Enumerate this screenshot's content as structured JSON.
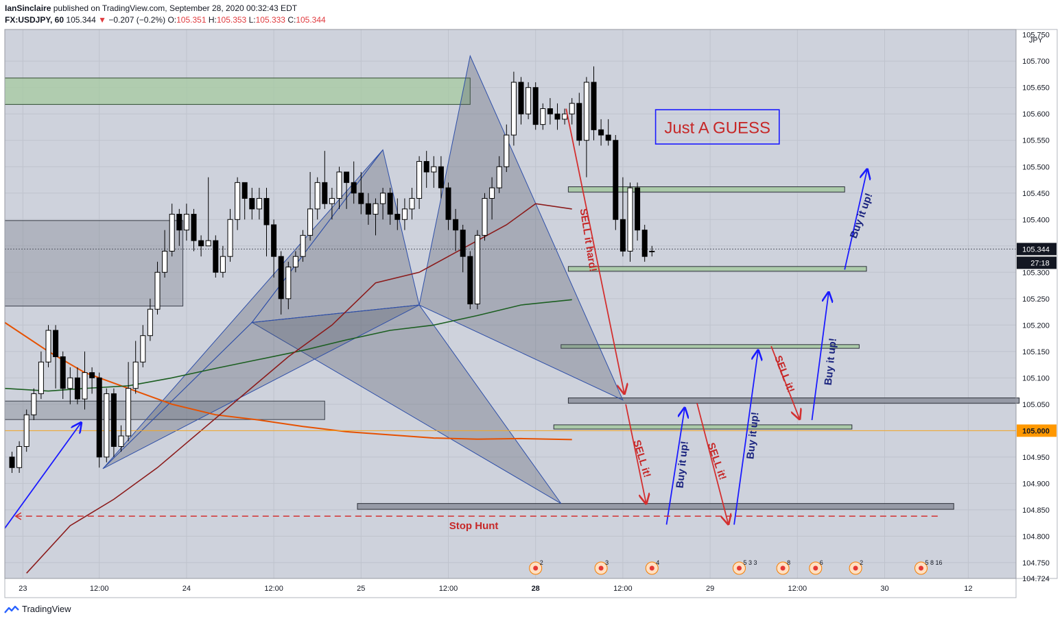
{
  "header": {
    "author": "IanSinclaire",
    "published_text": "published on TradingView.com, September 28, 2020 00:32:43 EDT",
    "symbol": "FX:USDJPY, 60",
    "last": "105.344",
    "change": "−0.207 (−0.2%)",
    "ohlc": [
      {
        "label": "O:",
        "value": "105.351"
      },
      {
        "label": "H:",
        "value": "105.353"
      },
      {
        "label": "L:",
        "value": "105.333"
      },
      {
        "label": "C:",
        "value": "105.344"
      }
    ]
  },
  "footer": {
    "brand": "TradingView"
  },
  "colors": {
    "bg": "#ced2dc",
    "up": "#ffffff",
    "down": "#000000",
    "accent_red": "#d32f2f",
    "accent_blue": "#1a1aff",
    "text_blue": "#1a237e"
  },
  "chart_data": {
    "type": "candlestick",
    "symbol": "FX:USDJPY",
    "interval": "60",
    "ylim": [
      104.72,
      105.76
    ],
    "yaxis_unit": "JPY",
    "yticks": [
      "105.700",
      "105.650",
      "105.600",
      "105.550",
      "105.500",
      "105.450",
      "105.400",
      "105.350",
      "105.300",
      "105.250",
      "105.200",
      "105.150",
      "105.100",
      "105.050",
      "105.000",
      "104.950",
      "104.900",
      "104.850",
      "104.800",
      "104.750"
    ],
    "ytick_top_partial": "105.750",
    "ytick_bottom_partial": "104.724",
    "price_label": "105.344",
    "countdown_label": "27:18",
    "level_label": "105.000",
    "xticks": [
      {
        "label": "23",
        "x": 1.5
      },
      {
        "label": "12:00",
        "x": 12
      },
      {
        "label": "24",
        "x": 24
      },
      {
        "label": "12:00",
        "x": 36
      },
      {
        "label": "25",
        "x": 48
      },
      {
        "label": "12:00",
        "x": 60
      },
      {
        "label": "28",
        "x": 72
      },
      {
        "label": "12:00",
        "x": 84
      },
      {
        "label": "29",
        "x": 96
      },
      {
        "label": "12:00",
        "x": 108
      },
      {
        "label": "30",
        "x": 120
      },
      {
        "label": "12",
        "x": 131.5
      }
    ],
    "candles": [
      [
        104.95,
        104.93,
        104.96,
        104.92
      ],
      [
        104.93,
        104.97,
        104.98,
        104.92
      ],
      [
        104.97,
        105.03,
        105.04,
        104.96
      ],
      [
        105.03,
        105.07,
        105.08,
        105.02
      ],
      [
        105.07,
        105.13,
        105.15,
        105.06
      ],
      [
        105.13,
        105.19,
        105.2,
        105.12
      ],
      [
        105.19,
        105.14,
        105.2,
        105.08
      ],
      [
        105.14,
        105.08,
        105.15,
        105.06
      ],
      [
        105.08,
        105.1,
        105.12,
        105.05
      ],
      [
        105.1,
        105.06,
        105.12,
        105.05
      ],
      [
        105.06,
        105.11,
        105.15,
        105.04
      ],
      [
        105.11,
        105.1,
        105.12,
        105.07
      ],
      [
        105.1,
        104.95,
        105.11,
        104.93
      ],
      [
        104.95,
        105.07,
        105.08,
        104.94
      ],
      [
        105.07,
        104.97,
        105.08,
        104.95
      ],
      [
        104.97,
        104.99,
        105.01,
        104.96
      ],
      [
        104.99,
        105.08,
        105.13,
        104.98
      ],
      [
        105.08,
        105.13,
        105.17,
        105.07
      ],
      [
        105.13,
        105.18,
        105.2,
        105.12
      ],
      [
        105.18,
        105.23,
        105.25,
        105.17
      ],
      [
        105.23,
        105.3,
        105.32,
        105.22
      ],
      [
        105.3,
        105.34,
        105.38,
        105.29
      ],
      [
        105.34,
        105.41,
        105.43,
        105.33
      ],
      [
        105.41,
        105.38,
        105.42,
        105.35
      ],
      [
        105.38,
        105.41,
        105.43,
        105.36
      ],
      [
        105.41,
        105.36,
        105.42,
        105.34
      ],
      [
        105.36,
        105.35,
        105.37,
        105.33
      ],
      [
        105.35,
        105.36,
        105.48,
        105.35
      ],
      [
        105.36,
        105.3,
        105.37,
        105.29
      ],
      [
        105.3,
        105.33,
        105.35,
        105.29
      ],
      [
        105.33,
        105.4,
        105.42,
        105.32
      ],
      [
        105.4,
        105.47,
        105.48,
        105.38
      ],
      [
        105.47,
        105.44,
        105.47,
        105.4
      ],
      [
        105.44,
        105.42,
        105.46,
        105.4
      ],
      [
        105.42,
        105.44,
        105.46,
        105.4
      ],
      [
        105.44,
        105.39,
        105.46,
        105.33
      ],
      [
        105.39,
        105.33,
        105.4,
        105.29
      ],
      [
        105.33,
        105.25,
        105.34,
        105.22
      ],
      [
        105.25,
        105.31,
        105.32,
        105.23
      ],
      [
        105.31,
        105.33,
        105.34,
        105.3
      ],
      [
        105.33,
        105.37,
        105.38,
        105.32
      ],
      [
        105.37,
        105.42,
        105.49,
        105.36
      ],
      [
        105.42,
        105.47,
        105.48,
        105.4
      ],
      [
        105.47,
        105.43,
        105.53,
        105.42
      ],
      [
        105.43,
        105.44,
        105.46,
        105.4
      ],
      [
        105.44,
        105.49,
        105.5,
        105.42
      ],
      [
        105.49,
        105.47,
        105.49,
        105.42
      ],
      [
        105.47,
        105.45,
        105.51,
        105.43
      ],
      [
        105.45,
        105.43,
        105.49,
        105.41
      ],
      [
        105.43,
        105.41,
        105.45,
        105.39
      ],
      [
        105.41,
        105.43,
        105.44,
        105.37
      ],
      [
        105.43,
        105.45,
        105.46,
        105.4
      ],
      [
        105.45,
        105.41,
        105.46,
        105.39
      ],
      [
        105.41,
        105.4,
        105.44,
        105.38
      ],
      [
        105.4,
        105.42,
        105.44,
        105.38
      ],
      [
        105.42,
        105.44,
        105.46,
        105.4
      ],
      [
        105.44,
        105.51,
        105.52,
        105.42
      ],
      [
        105.51,
        105.49,
        105.53,
        105.46
      ],
      [
        105.49,
        105.5,
        105.52,
        105.46
      ],
      [
        105.5,
        105.46,
        105.52,
        105.44
      ],
      [
        105.46,
        105.4,
        105.47,
        105.38
      ],
      [
        105.4,
        105.38,
        105.42,
        105.34
      ],
      [
        105.38,
        105.33,
        105.39,
        105.3
      ],
      [
        105.33,
        105.24,
        105.34,
        105.23
      ],
      [
        105.24,
        105.37,
        105.38,
        105.23
      ],
      [
        105.37,
        105.44,
        105.45,
        105.36
      ],
      [
        105.44,
        105.46,
        105.48,
        105.4
      ],
      [
        105.46,
        105.5,
        105.52,
        105.45
      ],
      [
        105.5,
        105.56,
        105.58,
        105.49
      ],
      [
        105.56,
        105.66,
        105.68,
        105.54
      ],
      [
        105.66,
        105.6,
        105.67,
        105.58
      ],
      [
        105.6,
        105.65,
        105.66,
        105.59
      ],
      [
        105.65,
        105.58,
        105.66,
        105.57
      ],
      [
        105.58,
        105.61,
        105.62,
        105.57
      ],
      [
        105.61,
        105.6,
        105.63,
        105.58
      ],
      [
        105.6,
        105.59,
        105.62,
        105.57
      ],
      [
        105.59,
        105.6,
        105.61,
        105.58
      ],
      [
        105.6,
        105.62,
        105.63,
        105.58
      ],
      [
        105.62,
        105.55,
        105.64,
        105.54
      ],
      [
        105.55,
        105.66,
        105.67,
        105.48
      ],
      [
        105.66,
        105.57,
        105.69,
        105.55
      ],
      [
        105.57,
        105.56,
        105.59,
        105.54
      ],
      [
        105.56,
        105.55,
        105.59,
        105.54
      ],
      [
        105.55,
        105.4,
        105.56,
        105.38
      ],
      [
        105.4,
        105.34,
        105.48,
        105.33
      ],
      [
        105.34,
        105.46,
        105.47,
        105.32
      ],
      [
        105.46,
        105.38,
        105.47,
        105.36
      ],
      [
        105.38,
        105.33,
        105.39,
        105.32
      ],
      [
        105.34,
        105.34,
        105.35,
        105.33
      ]
    ],
    "annotations": {
      "title_box": "Just A GUESS",
      "stop_hunt": "Stop Hunt",
      "sell_hard": "SELL it hard!",
      "sell_1": "SELL it!",
      "sell_2": "SELL it!",
      "sell_3": "SELL it!",
      "buy_1": "Buy it up!",
      "buy_2": "Buy it up!",
      "buy_3": "Buy it up!",
      "buy_4": "Buy it up!"
    },
    "events": [
      {
        "label": "2",
        "x": 72
      },
      {
        "label": "3",
        "x": 81
      },
      {
        "label": "4",
        "x": 88
      },
      {
        "label": "5 3 3",
        "x": 100
      },
      {
        "label": "8",
        "x": 106
      },
      {
        "label": "6",
        "x": 110.5
      },
      {
        "label": "2",
        "x": 116
      },
      {
        "label": "5 8 16",
        "x": 125
      }
    ]
  }
}
